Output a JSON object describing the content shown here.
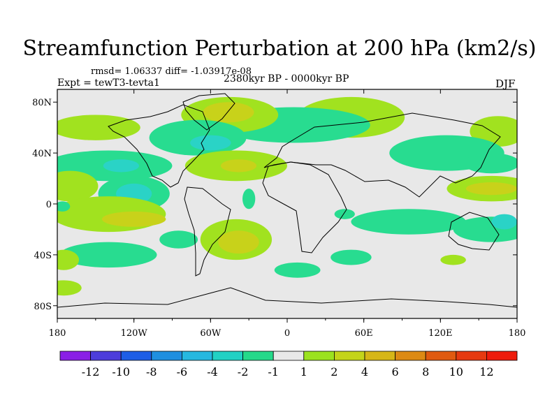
{
  "title": "Streamfunction Perturbation at 200 hPa (km2/s)",
  "stats": "rmsd= 1.06337 diff= -1.03917e-08",
  "experiment": "Expt = tewT3-tevta1",
  "period": "2380kyr BP - 0000kyr BP",
  "season": "DJF",
  "map": {
    "lon_labels": [
      "180",
      "120W",
      "60W",
      "0",
      "60E",
      "120E",
      "180"
    ],
    "lon_values": [
      -180,
      -120,
      -60,
      0,
      60,
      120,
      180
    ],
    "lat_labels": [
      "80N",
      "40N",
      "0",
      "40S",
      "80S"
    ],
    "lat_values": [
      80,
      40,
      0,
      -40,
      -80
    ],
    "background_color": "#e8e8e8",
    "anomalies": [
      {
        "lon": 50,
        "lat": 68,
        "rx": 42,
        "ry": 16,
        "level": "1"
      },
      {
        "lon": 5,
        "lat": 62,
        "rx": 60,
        "ry": 14,
        "level": "-1"
      },
      {
        "lon": -45,
        "lat": 70,
        "rx": 38,
        "ry": 14,
        "level": "1"
      },
      {
        "lon": -46,
        "lat": 72,
        "rx": 20,
        "ry": 8,
        "level": "2"
      },
      {
        "lon": -70,
        "lat": 52,
        "rx": 38,
        "ry": 14,
        "level": "-1"
      },
      {
        "lon": -60,
        "lat": 48,
        "rx": 16,
        "ry": 6,
        "level": "-2"
      },
      {
        "lon": -150,
        "lat": 60,
        "rx": 35,
        "ry": 10,
        "level": "1"
      },
      {
        "lon": 165,
        "lat": 57,
        "rx": 22,
        "ry": 12,
        "level": "1"
      },
      {
        "lon": 125,
        "lat": 40,
        "rx": 45,
        "ry": 14,
        "level": "-1"
      },
      {
        "lon": 160,
        "lat": 32,
        "rx": 22,
        "ry": 8,
        "level": "-1"
      },
      {
        "lon": -140,
        "lat": 30,
        "rx": 50,
        "ry": 12,
        "level": "-1"
      },
      {
        "lon": -130,
        "lat": 30,
        "rx": 14,
        "ry": 5,
        "level": "-2"
      },
      {
        "lon": -40,
        "lat": 30,
        "rx": 40,
        "ry": 12,
        "level": "1"
      },
      {
        "lon": -38,
        "lat": 30,
        "rx": 14,
        "ry": 5,
        "level": "2"
      },
      {
        "lon": -170,
        "lat": 14,
        "rx": 22,
        "ry": 12,
        "level": "1"
      },
      {
        "lon": -120,
        "lat": 8,
        "rx": 28,
        "ry": 14,
        "level": "-1"
      },
      {
        "lon": -120,
        "lat": 8,
        "rx": 14,
        "ry": 8,
        "level": "-2"
      },
      {
        "lon": 160,
        "lat": 12,
        "rx": 35,
        "ry": 10,
        "level": "1"
      },
      {
        "lon": 160,
        "lat": 12,
        "rx": 20,
        "ry": 5,
        "level": "2"
      },
      {
        "lon": -140,
        "lat": -8,
        "rx": 45,
        "ry": 14,
        "level": "1"
      },
      {
        "lon": -120,
        "lat": -12,
        "rx": 25,
        "ry": 6,
        "level": "2"
      },
      {
        "lon": -40,
        "lat": -28,
        "rx": 28,
        "ry": 16,
        "level": "1"
      },
      {
        "lon": -38,
        "lat": -30,
        "rx": 16,
        "ry": 9,
        "level": "2"
      },
      {
        "lon": -85,
        "lat": -28,
        "rx": 15,
        "ry": 7,
        "level": "-1"
      },
      {
        "lon": -140,
        "lat": -40,
        "rx": 38,
        "ry": 10,
        "level": "-1"
      },
      {
        "lon": -175,
        "lat": -44,
        "rx": 12,
        "ry": 8,
        "level": "1"
      },
      {
        "lon": -175,
        "lat": -66,
        "rx": 14,
        "ry": 6,
        "level": "1"
      },
      {
        "lon": 8,
        "lat": -52,
        "rx": 18,
        "ry": 6,
        "level": "-1"
      },
      {
        "lon": 50,
        "lat": -42,
        "rx": 16,
        "ry": 6,
        "level": "-1"
      },
      {
        "lon": -30,
        "lat": 4,
        "rx": 5,
        "ry": 8,
        "level": "-1"
      },
      {
        "lon": 45,
        "lat": -8,
        "rx": 8,
        "ry": 4,
        "level": "-1"
      },
      {
        "lon": 95,
        "lat": -14,
        "rx": 45,
        "ry": 10,
        "level": "-1"
      },
      {
        "lon": 160,
        "lat": -20,
        "rx": 30,
        "ry": 10,
        "level": "-1"
      },
      {
        "lon": 170,
        "lat": -14,
        "rx": 10,
        "ry": 6,
        "level": "-2"
      },
      {
        "lon": -176,
        "lat": -2,
        "rx": 6,
        "ry": 4,
        "level": "-1"
      },
      {
        "lon": 130,
        "lat": -44,
        "rx": 10,
        "ry": 4,
        "level": "1"
      }
    ]
  },
  "colorbar": {
    "labels": [
      "-12",
      "-10",
      "-8",
      "-6",
      "-4",
      "-2",
      "-1",
      "1",
      "2",
      "4",
      "6",
      "8",
      "10",
      "12"
    ],
    "colors": [
      "#8a1fe6",
      "#4d3ddb",
      "#1e5ee6",
      "#1f8fe0",
      "#26b8e0",
      "#22d1c4",
      "#25d98a",
      "#e8e8e8",
      "#9be21f",
      "#c4d41a",
      "#d6b617",
      "#dc8a14",
      "#e05a10",
      "#e63a10",
      "#ee1c0c"
    ]
  },
  "level_colors": {
    "-2": "#2ad3c6",
    "-1": "#28dc90",
    "1": "#a1e21f",
    "2": "#c8d21a"
  }
}
